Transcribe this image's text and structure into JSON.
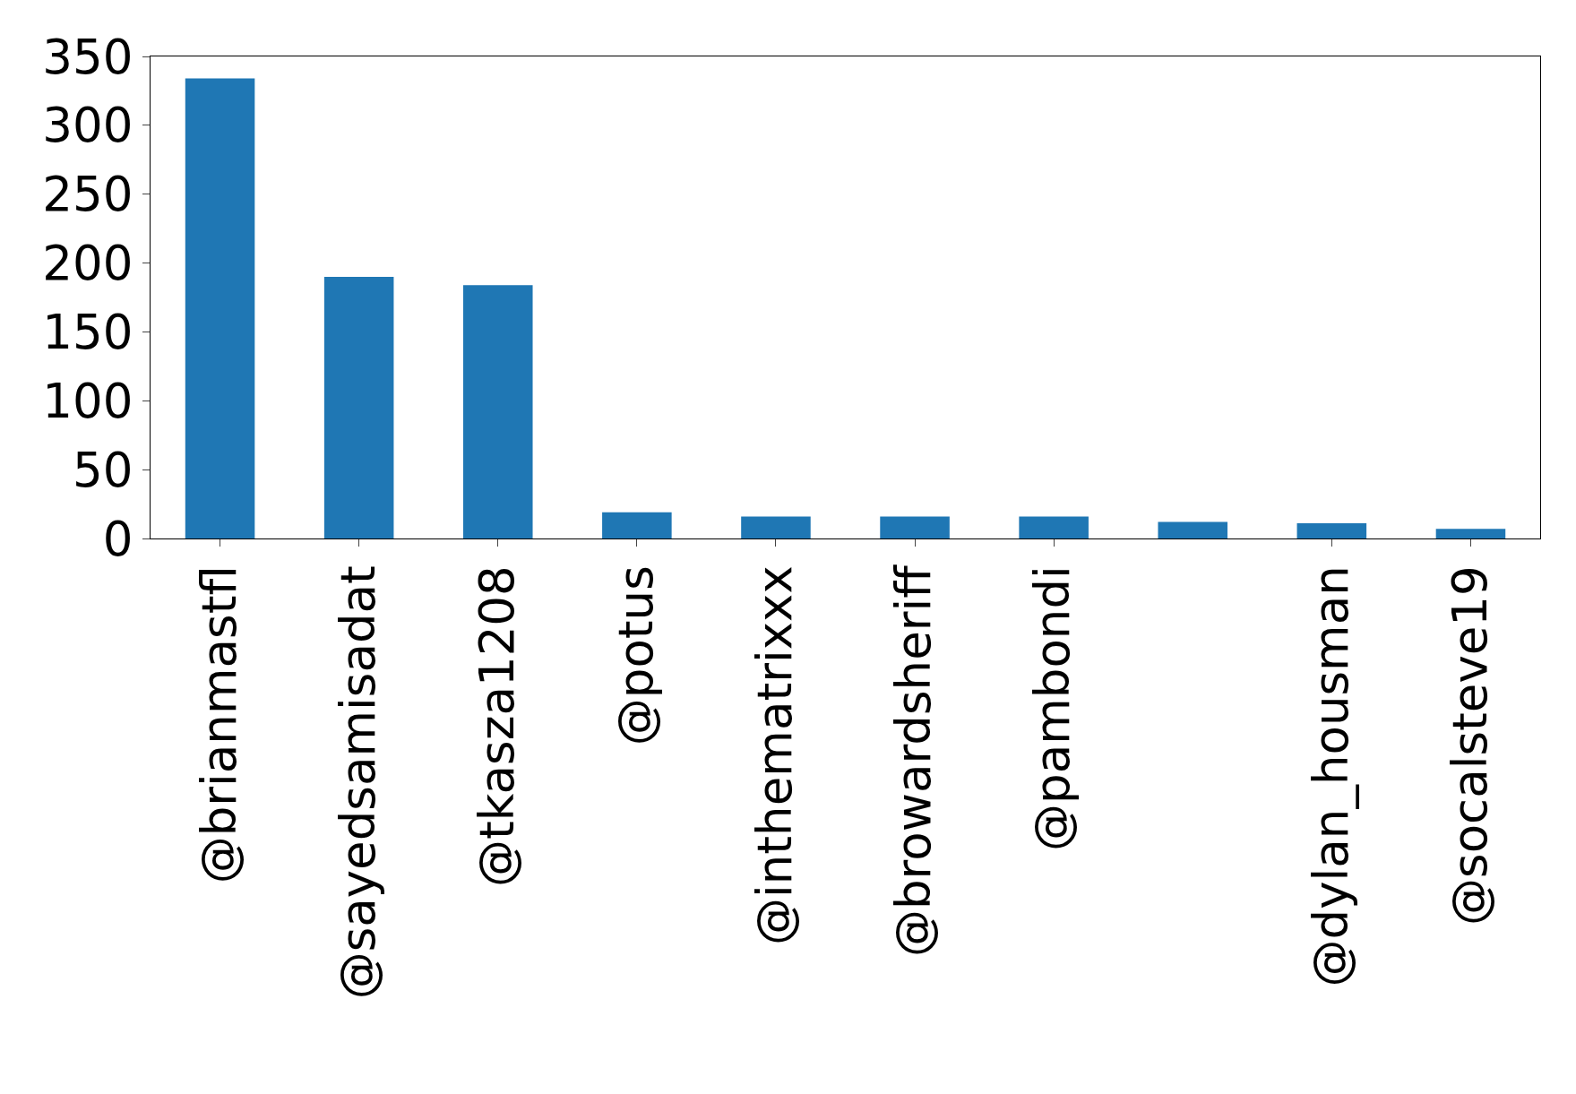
{
  "chart_data": {
    "type": "bar",
    "categories": [
      "@brianmastfl",
      "@sayedsamisadat",
      "@tkasza1208",
      "@potus",
      "@inthematrixxx",
      "@browardsheriff",
      "@pambondi",
      null,
      "@dylan_housman",
      "@socalsteve19"
    ],
    "values": [
      334,
      190,
      184,
      19,
      16,
      16,
      16,
      12,
      11,
      7
    ],
    "color": "#1f77b4",
    "ylim": [
      0,
      350
    ],
    "yticks": [
      0,
      50,
      100,
      150,
      200,
      250,
      300,
      350
    ],
    "grid": false
  }
}
